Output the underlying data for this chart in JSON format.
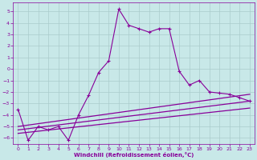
{
  "xlabel": "Windchill (Refroidissement éolien,°C)",
  "xlim": [
    -0.5,
    23.5
  ],
  "ylim": [
    -6.5,
    5.8
  ],
  "yticks": [
    -6,
    -5,
    -4,
    -3,
    -2,
    -1,
    0,
    1,
    2,
    3,
    4,
    5
  ],
  "xticks": [
    0,
    1,
    2,
    3,
    4,
    5,
    6,
    7,
    8,
    9,
    10,
    11,
    12,
    13,
    14,
    15,
    16,
    17,
    18,
    19,
    20,
    21,
    22,
    23
  ],
  "background_color": "#c8e8e8",
  "grid_color": "#aacccc",
  "line_color": "#880099",
  "line1_x": [
    0,
    1,
    2,
    3,
    4,
    5,
    6,
    7,
    8,
    9,
    10,
    11,
    12,
    13,
    14,
    15,
    16,
    17,
    18,
    19,
    20,
    21,
    22,
    23
  ],
  "line1_y": [
    -3.5,
    -6.2,
    -5.0,
    -5.3,
    -5.0,
    -6.2,
    -4.0,
    -2.3,
    -0.3,
    0.7,
    5.2,
    3.8,
    3.5,
    3.2,
    3.5,
    3.5,
    -0.2,
    -1.4,
    -1.0,
    -2.0,
    -2.1,
    -2.2,
    -2.5,
    -2.8
  ],
  "line2_x": [
    0,
    23
  ],
  "line2_y": [
    -5.0,
    -2.2
  ],
  "line3_x": [
    0,
    23
  ],
  "line3_y": [
    -5.3,
    -2.8
  ],
  "line4_x": [
    0,
    23
  ],
  "line4_y": [
    -5.6,
    -3.4
  ]
}
